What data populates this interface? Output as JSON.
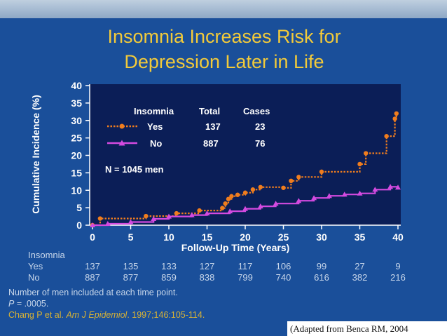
{
  "slide": {
    "title_line1": "Insomnia Increases Risk for",
    "title_line2": "Depression Later in Life",
    "notes": {
      "line1": "Number of men included at each time point.",
      "p_label": "P",
      "p_value": " = .0005.",
      "citation_authors": "Chang P et al. ",
      "citation_journal": "Am J Epidemiol",
      "citation_rest": ". 1997;146:105-114."
    },
    "footer": "(Adapted from Benca RM, 2004"
  },
  "colors": {
    "background": "#1a4f9a",
    "plot_bg": "#0b1e57",
    "title": "#f2ca3a",
    "yes_series": "#f07d1e",
    "no_series": "#d44ae0",
    "text_light": "#c7d6ea"
  },
  "chart_data": {
    "type": "line",
    "xlabel": "Follow-Up Time (Years)",
    "ylabel": "Cumulative Incidence (%)",
    "xlim": [
      0,
      40
    ],
    "ylim": [
      0,
      40
    ],
    "xticks": [
      0,
      5,
      10,
      15,
      20,
      25,
      30,
      35,
      40
    ],
    "yticks": [
      0,
      5,
      10,
      15,
      20,
      25,
      30,
      35,
      40
    ],
    "legend": {
      "header_group": "Insomnia",
      "header_total": "Total",
      "header_cases": "Cases",
      "rows": [
        {
          "label": "Yes",
          "total": "137",
          "cases": "23"
        },
        {
          "label": "No",
          "total": "887",
          "cases": "76"
        }
      ]
    },
    "annotation": "N = 1045 men",
    "series": [
      {
        "name": "Yes",
        "style": "step-dotted-circle",
        "points": [
          [
            0,
            0
          ],
          [
            1,
            1.9
          ],
          [
            7,
            2.6
          ],
          [
            11,
            3.4
          ],
          [
            14,
            4.2
          ],
          [
            17,
            4.9
          ],
          [
            17.4,
            6.2
          ],
          [
            17.8,
            7.5
          ],
          [
            18.2,
            8.3
          ],
          [
            19,
            8.7
          ],
          [
            20,
            9.3
          ],
          [
            21,
            10.2
          ],
          [
            22,
            10.9
          ],
          [
            25,
            10.7
          ],
          [
            26,
            12.7
          ],
          [
            27,
            13.8
          ],
          [
            30,
            15.3
          ],
          [
            35,
            17.5
          ],
          [
            35.8,
            20.6
          ],
          [
            38.5,
            25.5
          ],
          [
            39.6,
            30.5
          ],
          [
            39.8,
            32
          ]
        ]
      },
      {
        "name": "No",
        "style": "step-solid-triangle",
        "points": [
          [
            0,
            0
          ],
          [
            2,
            0.4
          ],
          [
            5,
            0.9
          ],
          [
            8,
            1.8
          ],
          [
            10,
            2.5
          ],
          [
            13,
            2.9
          ],
          [
            15,
            3.4
          ],
          [
            18,
            4.0
          ],
          [
            20,
            4.7
          ],
          [
            22,
            5.4
          ],
          [
            24,
            6.2
          ],
          [
            27,
            7.0
          ],
          [
            29,
            7.8
          ],
          [
            31,
            8.4
          ],
          [
            33,
            8.8
          ],
          [
            35,
            9.1
          ],
          [
            37,
            10.2
          ],
          [
            39,
            11.0
          ],
          [
            40,
            10.8
          ]
        ]
      }
    ],
    "table": {
      "row_label": "Insomnia",
      "rows": [
        {
          "label": "Yes",
          "values": [
            "137",
            "135",
            "133",
            "127",
            "117",
            "106",
            "99",
            "27",
            "9"
          ]
        },
        {
          "label": "No",
          "values": [
            "887",
            "877",
            "859",
            "838",
            "799",
            "740",
            "616",
            "382",
            "216"
          ]
        }
      ]
    }
  }
}
